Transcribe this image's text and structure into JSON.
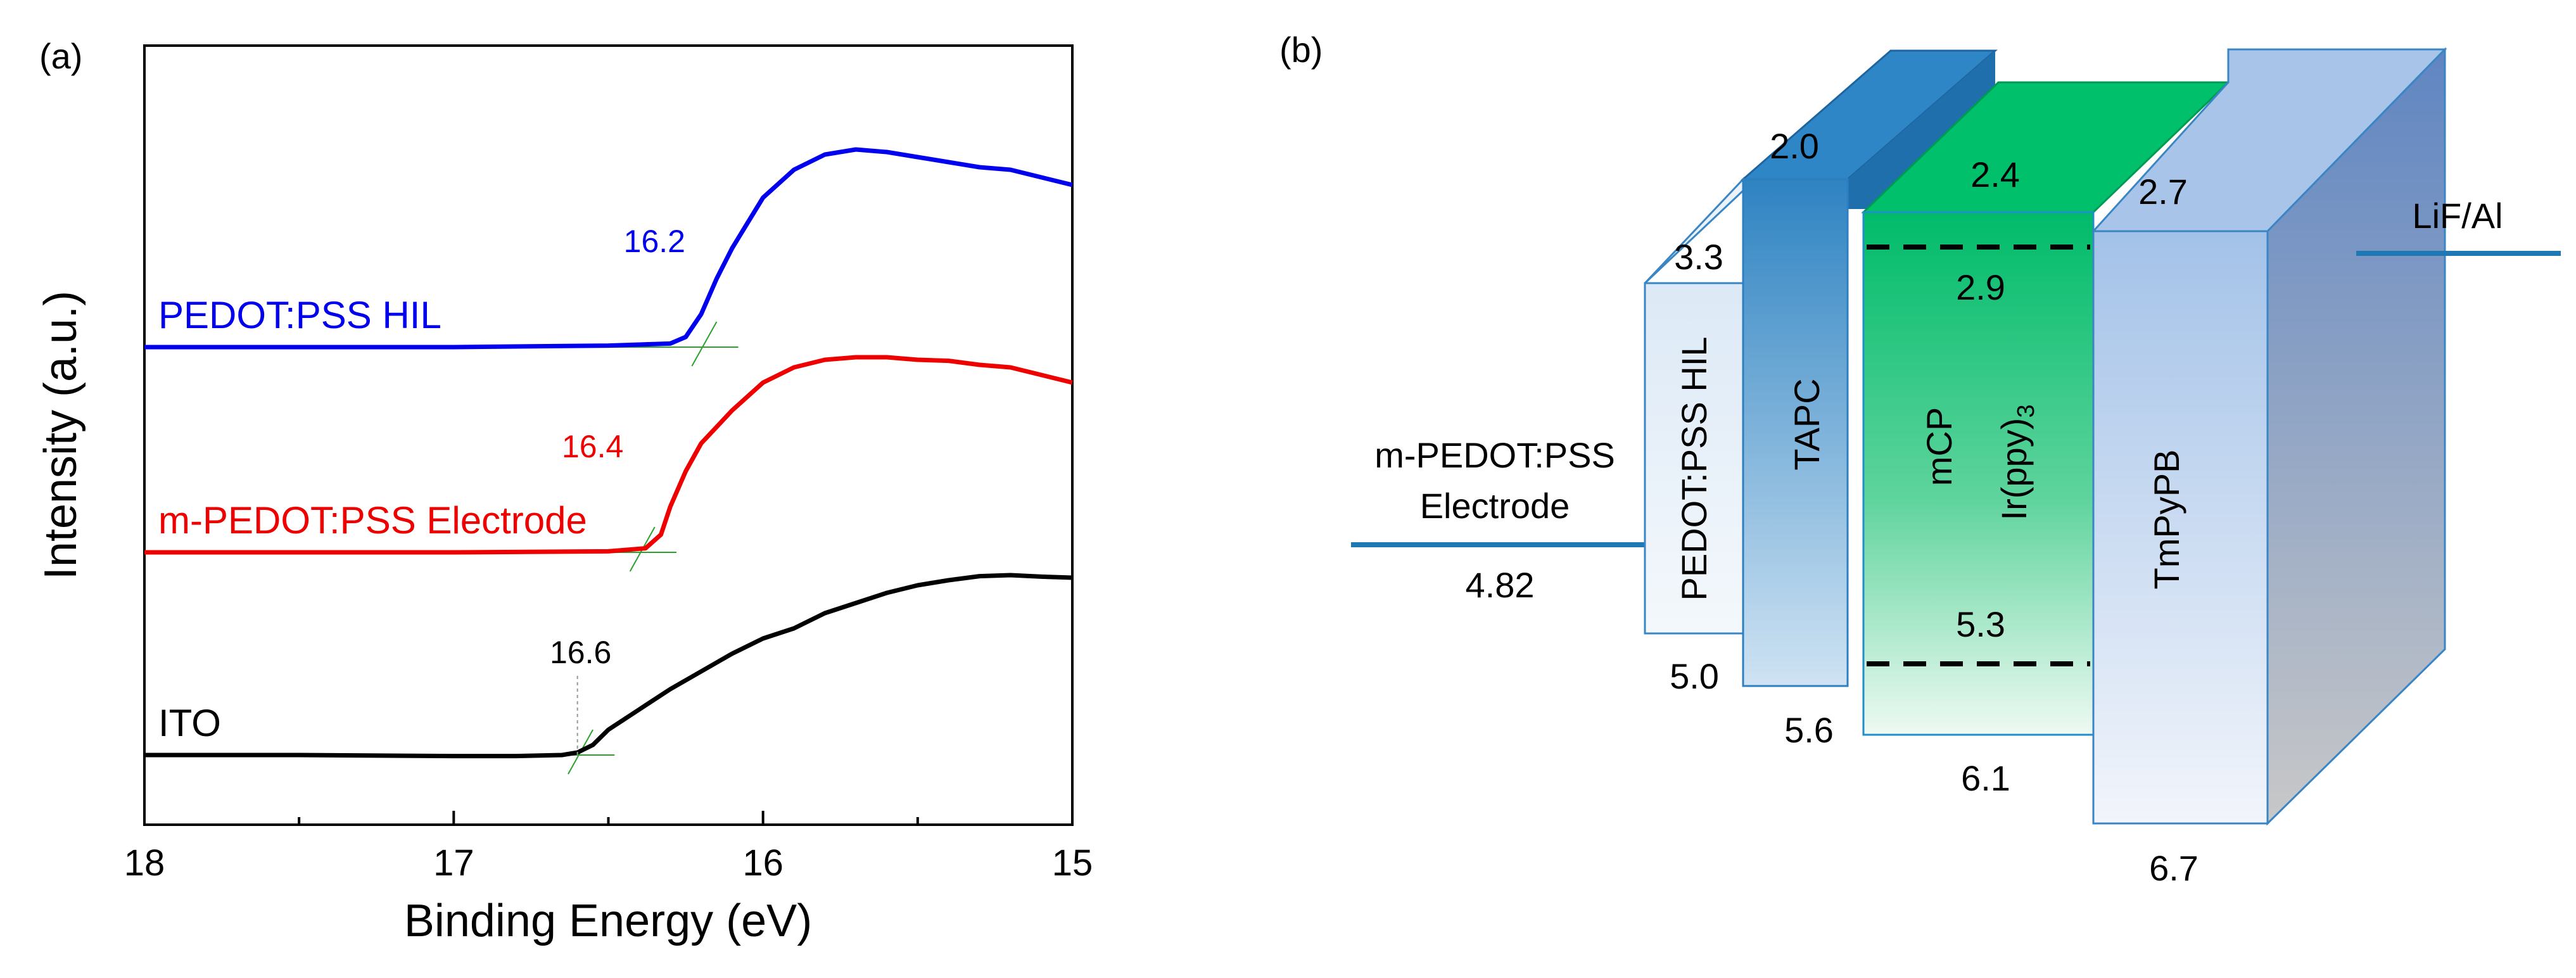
{
  "panel_a": {
    "label": "(a)"
  },
  "panel_b": {
    "label": "(b)",
    "anode": {
      "name_line1": "m-PEDOT:PSS",
      "name_line2": "Electrode",
      "value": "4.82"
    },
    "cathode": {
      "name": "LiF/Al"
    },
    "layers": [
      {
        "name": "PEDOT:PSS HIL",
        "top": "3.3",
        "bottom": "5.0"
      },
      {
        "name": "TAPC",
        "top": "2.0",
        "bottom": "5.6"
      },
      {
        "name": "mCP",
        "dopant": "Ir(ppy)",
        "dopant_sub": "3",
        "top": "2.4",
        "bottom": "6.1",
        "dopant_top": "2.9",
        "dopant_bottom": "5.3"
      },
      {
        "name": "TmPyPB",
        "top": "2.7",
        "bottom": "6.7"
      }
    ]
  },
  "chart_data": [
    {
      "type": "line",
      "title": "",
      "xlabel": "Binding Energy (eV)",
      "ylabel": "Intensity (a.u.)",
      "xlim": [
        18,
        15
      ],
      "x_reversed": true,
      "xticks": [
        "18",
        "17",
        "16",
        "15"
      ],
      "y_ticks_shown": false,
      "grid": false,
      "series": [
        {
          "name": "PEDOT:PSS HIL",
          "color": "#0000ee",
          "cutoff_label": "16.2",
          "cutoff": 16.2,
          "points": [
            [
              18.0,
              0.855
            ],
            [
              17.0,
              0.855
            ],
            [
              16.5,
              0.858
            ],
            [
              16.3,
              0.862
            ],
            [
              16.25,
              0.875
            ],
            [
              16.2,
              0.92
            ],
            [
              16.15,
              0.99
            ],
            [
              16.1,
              1.05
            ],
            [
              16.05,
              1.1
            ],
            [
              16.0,
              1.15
            ],
            [
              15.9,
              1.205
            ],
            [
              15.8,
              1.235
            ],
            [
              15.7,
              1.245
            ],
            [
              15.6,
              1.24
            ],
            [
              15.5,
              1.23
            ],
            [
              15.4,
              1.22
            ],
            [
              15.3,
              1.21
            ],
            [
              15.2,
              1.205
            ],
            [
              15.1,
              1.19
            ],
            [
              15.0,
              1.175
            ]
          ]
        },
        {
          "name": "m-PEDOT:PSS Electrode",
          "color": "#ee0000",
          "cutoff_label": "16.4",
          "cutoff": 16.4,
          "points": [
            [
              18.0,
              0.45
            ],
            [
              17.0,
              0.45
            ],
            [
              16.5,
              0.452
            ],
            [
              16.38,
              0.458
            ],
            [
              16.33,
              0.485
            ],
            [
              16.3,
              0.54
            ],
            [
              16.25,
              0.61
            ],
            [
              16.2,
              0.665
            ],
            [
              16.1,
              0.73
            ],
            [
              16.0,
              0.785
            ],
            [
              15.9,
              0.815
            ],
            [
              15.8,
              0.83
            ],
            [
              15.7,
              0.835
            ],
            [
              15.6,
              0.835
            ],
            [
              15.5,
              0.83
            ],
            [
              15.4,
              0.828
            ],
            [
              15.3,
              0.82
            ],
            [
              15.2,
              0.815
            ],
            [
              15.1,
              0.8
            ],
            [
              15.0,
              0.785
            ]
          ]
        },
        {
          "name": "ITO",
          "color": "#000000",
          "cutoff_label": "16.6",
          "cutoff": 16.6,
          "points": [
            [
              18.0,
              0.05
            ],
            [
              17.5,
              0.05
            ],
            [
              17.0,
              0.048
            ],
            [
              16.8,
              0.048
            ],
            [
              16.65,
              0.05
            ],
            [
              16.6,
              0.055
            ],
            [
              16.55,
              0.07
            ],
            [
              16.5,
              0.1
            ],
            [
              16.4,
              0.14
            ],
            [
              16.3,
              0.18
            ],
            [
              16.2,
              0.215
            ],
            [
              16.1,
              0.25
            ],
            [
              16.0,
              0.28
            ],
            [
              15.9,
              0.3
            ],
            [
              15.8,
              0.33
            ],
            [
              15.7,
              0.35
            ],
            [
              15.6,
              0.37
            ],
            [
              15.5,
              0.385
            ],
            [
              15.4,
              0.395
            ],
            [
              15.3,
              0.403
            ],
            [
              15.2,
              0.405
            ],
            [
              15.1,
              0.402
            ],
            [
              15.0,
              0.4
            ]
          ]
        }
      ]
    }
  ]
}
